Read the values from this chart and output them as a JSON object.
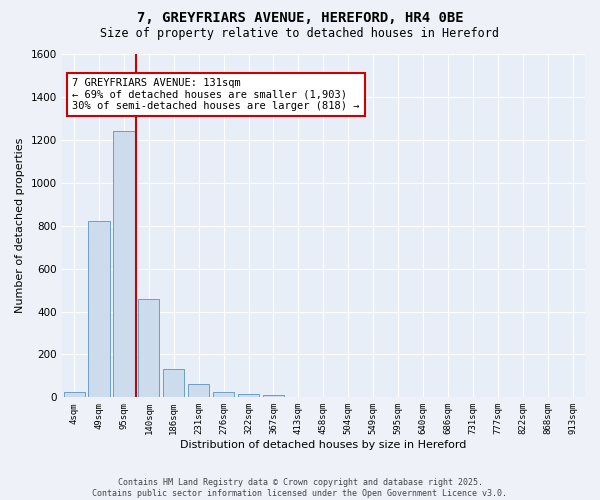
{
  "title": "7, GREYFRIARS AVENUE, HEREFORD, HR4 0BE",
  "subtitle": "Size of property relative to detached houses in Hereford",
  "xlabel": "Distribution of detached houses by size in Hereford",
  "ylabel": "Number of detached properties",
  "categories": [
    "4sqm",
    "49sqm",
    "95sqm",
    "140sqm",
    "186sqm",
    "231sqm",
    "276sqm",
    "322sqm",
    "367sqm",
    "413sqm",
    "458sqm",
    "504sqm",
    "549sqm",
    "595sqm",
    "640sqm",
    "686sqm",
    "731sqm",
    "777sqm",
    "822sqm",
    "868sqm",
    "913sqm"
  ],
  "values": [
    25,
    820,
    1240,
    460,
    130,
    60,
    25,
    15,
    10,
    0,
    0,
    0,
    0,
    0,
    0,
    0,
    0,
    0,
    0,
    0,
    0
  ],
  "bar_color": "#ccdcec",
  "bar_edge_color": "#6a9fc8",
  "bar_width": 0.85,
  "ylim": [
    0,
    1600
  ],
  "yticks": [
    0,
    200,
    400,
    600,
    800,
    1000,
    1200,
    1400,
    1600
  ],
  "vline_index": 2.5,
  "vline_color": "#cc0000",
  "annotation_text": "7 GREYFRIARS AVENUE: 131sqm\n← 69% of detached houses are smaller (1,903)\n30% of semi-detached houses are larger (818) →",
  "annotation_box_facecolor": "#ffffff",
  "annotation_box_edgecolor": "#cc0000",
  "bg_color": "#eef2f8",
  "plot_bg_color": "#e8eef8",
  "grid_color": "#ffffff",
  "title_fontsize": 10,
  "subtitle_fontsize": 8.5,
  "footer_line1": "Contains HM Land Registry data © Crown copyright and database right 2025.",
  "footer_line2": "Contains public sector information licensed under the Open Government Licence v3.0."
}
